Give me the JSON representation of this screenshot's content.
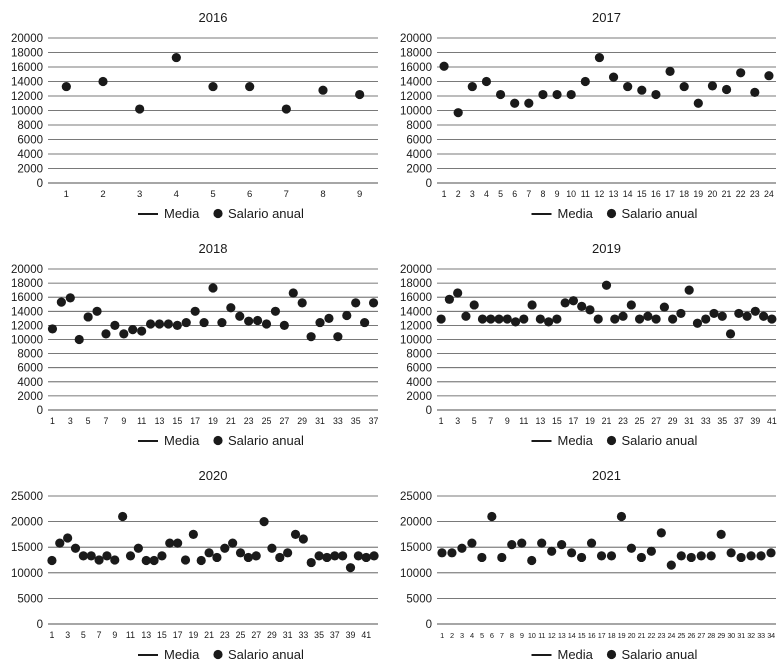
{
  "legend": {
    "line_label": "Media",
    "marker_label": "Salario anual"
  },
  "colors": {
    "marker": "#1a1a1a",
    "grid": "#4d4d4d",
    "axis": "#4d4d4d",
    "text": "#1a1a1a"
  },
  "chart_data": [
    {
      "type": "scatter",
      "title": "2016",
      "ylim": [
        0,
        20000
      ],
      "yticks": [
        0,
        2000,
        4000,
        6000,
        8000,
        10000,
        12000,
        14000,
        16000,
        18000,
        20000
      ],
      "xticks": [
        1,
        2,
        3,
        4,
        5,
        6,
        7,
        8,
        9
      ],
      "x": [
        1,
        2,
        3,
        4,
        5,
        6,
        7,
        8,
        9
      ],
      "series": [
        {
          "name": "Salario anual",
          "values": [
            13300,
            14000,
            10200,
            17300,
            13300,
            13300,
            10200,
            12800,
            12200
          ]
        }
      ],
      "grid": true,
      "legend_position": "bottom"
    },
    {
      "type": "scatter",
      "title": "2017",
      "ylim": [
        0,
        20000
      ],
      "yticks": [
        0,
        2000,
        4000,
        6000,
        8000,
        10000,
        12000,
        14000,
        16000,
        18000,
        20000
      ],
      "xticks": [
        1,
        2,
        3,
        4,
        5,
        6,
        7,
        8,
        9,
        10,
        11,
        12,
        13,
        14,
        15,
        16,
        17,
        18,
        19,
        20,
        21,
        22,
        23,
        24
      ],
      "x": [
        1,
        2,
        3,
        4,
        5,
        6,
        7,
        8,
        9,
        10,
        11,
        12,
        13,
        14,
        15,
        16,
        17,
        18,
        19,
        20,
        21,
        22,
        23,
        24
      ],
      "series": [
        {
          "name": "Salario anual",
          "values": [
            16100,
            9700,
            13300,
            14000,
            12200,
            11000,
            11000,
            12200,
            12200,
            12200,
            14000,
            17300,
            14600,
            13300,
            12800,
            12200,
            15400,
            13300,
            11000,
            13400,
            12900,
            15200,
            12500,
            14800
          ]
        }
      ],
      "grid": true,
      "legend_position": "bottom"
    },
    {
      "type": "scatter",
      "title": "2018",
      "ylim": [
        0,
        20000
      ],
      "yticks": [
        0,
        2000,
        4000,
        6000,
        8000,
        10000,
        12000,
        14000,
        16000,
        18000,
        20000
      ],
      "xticks": [
        1,
        3,
        5,
        7,
        9,
        11,
        13,
        15,
        17,
        19,
        21,
        23,
        25,
        27,
        29,
        31,
        33,
        35,
        37
      ],
      "x": [
        1,
        2,
        3,
        4,
        5,
        6,
        7,
        8,
        9,
        10,
        11,
        12,
        13,
        14,
        15,
        16,
        17,
        18,
        19,
        20,
        21,
        22,
        23,
        24,
        25,
        26,
        27,
        28,
        29,
        30,
        31,
        32,
        33,
        34,
        35,
        36,
        37
      ],
      "series": [
        {
          "name": "Salario anual",
          "values": [
            11500,
            15300,
            15900,
            10000,
            13200,
            14000,
            10800,
            12000,
            10800,
            11400,
            11200,
            12200,
            12200,
            12200,
            12000,
            12400,
            14000,
            12400,
            17300,
            12400,
            14500,
            13300,
            12600,
            12700,
            12200,
            14000,
            12000,
            16600,
            15200,
            10400,
            12400,
            13000,
            10400,
            13400,
            15200,
            12400,
            15200
          ]
        }
      ],
      "grid": true,
      "legend_position": "bottom"
    },
    {
      "type": "scatter",
      "title": "2019",
      "ylim": [
        0,
        20000
      ],
      "yticks": [
        0,
        2000,
        4000,
        6000,
        8000,
        10000,
        12000,
        14000,
        16000,
        18000,
        20000
      ],
      "xticks": [
        1,
        3,
        5,
        7,
        9,
        11,
        13,
        15,
        17,
        19,
        21,
        23,
        25,
        27,
        29,
        31,
        33,
        35,
        37,
        39,
        41
      ],
      "x": [
        1,
        2,
        3,
        4,
        5,
        6,
        7,
        8,
        9,
        10,
        11,
        12,
        13,
        14,
        15,
        16,
        17,
        18,
        19,
        20,
        21,
        22,
        23,
        24,
        25,
        26,
        27,
        28,
        29,
        30,
        31,
        32,
        33,
        34,
        35,
        36,
        37,
        38,
        39,
        40,
        41
      ],
      "series": [
        {
          "name": "Salario anual",
          "values": [
            12900,
            15700,
            16600,
            13300,
            14900,
            12900,
            12900,
            12900,
            12900,
            12500,
            12900,
            14900,
            12900,
            12500,
            12900,
            15200,
            15500,
            14700,
            14200,
            12900,
            17700,
            12900,
            13300,
            14900,
            12900,
            13300,
            12900,
            14600,
            12900,
            13700,
            17000,
            12300,
            12900,
            13700,
            13300,
            10800,
            13700,
            13300,
            14000,
            13300,
            12900
          ]
        }
      ],
      "grid": true,
      "legend_position": "bottom"
    },
    {
      "type": "scatter",
      "title": "2020",
      "ylim": [
        0,
        25000
      ],
      "yticks": [
        0,
        5000,
        10000,
        15000,
        20000,
        25000
      ],
      "xticks": [
        1,
        3,
        5,
        7,
        9,
        11,
        13,
        15,
        17,
        19,
        21,
        23,
        25,
        27,
        29,
        31,
        33,
        35,
        37,
        39,
        41
      ],
      "x": [
        1,
        2,
        3,
        4,
        5,
        6,
        7,
        8,
        9,
        10,
        11,
        12,
        13,
        14,
        15,
        16,
        17,
        18,
        19,
        20,
        21,
        22,
        23,
        24,
        25,
        26,
        27,
        28,
        29,
        30,
        31,
        32,
        33,
        34,
        35,
        36,
        37,
        38,
        39,
        40,
        41,
        42
      ],
      "series": [
        {
          "name": "Salario anual",
          "values": [
            12400,
            15800,
            16800,
            14800,
            13300,
            13300,
            12500,
            13300,
            12500,
            21000,
            13300,
            14800,
            12400,
            12400,
            13300,
            15800,
            15800,
            12500,
            17500,
            12400,
            13900,
            13000,
            14800,
            15800,
            13900,
            13000,
            13300,
            20000,
            14800,
            13000,
            13900,
            17500,
            16600,
            12000,
            13300,
            13000,
            13300,
            13300,
            11000,
            13300,
            13000,
            13300
          ]
        }
      ],
      "grid": true,
      "legend_position": "bottom"
    },
    {
      "type": "scatter",
      "title": "2021",
      "ylim": [
        0,
        25000
      ],
      "yticks": [
        0,
        5000,
        10000,
        15000,
        20000,
        25000
      ],
      "xticks": [
        1,
        2,
        3,
        4,
        5,
        6,
        7,
        8,
        9,
        10,
        11,
        12,
        13,
        14,
        15,
        16,
        17,
        18,
        19,
        20,
        21,
        22,
        23,
        24,
        25,
        26,
        27,
        28,
        29,
        30,
        31,
        32,
        33,
        34
      ],
      "x": [
        1,
        2,
        3,
        4,
        5,
        6,
        7,
        8,
        9,
        10,
        11,
        12,
        13,
        14,
        15,
        16,
        17,
        18,
        19,
        20,
        21,
        22,
        23,
        24,
        25,
        26,
        27,
        28,
        29,
        30,
        31,
        32,
        33,
        34
      ],
      "series": [
        {
          "name": "Salario anual",
          "values": [
            13900,
            13900,
            14800,
            15800,
            13000,
            21000,
            13000,
            15500,
            15800,
            12400,
            15800,
            14200,
            15500,
            13900,
            13000,
            15800,
            13300,
            13300,
            21000,
            14800,
            13000,
            14200,
            17800,
            11500,
            13300,
            13000,
            13300,
            13300,
            17500,
            13900,
            13000,
            13300,
            13300,
            13900
          ]
        }
      ],
      "grid": true,
      "legend_position": "bottom"
    }
  ]
}
